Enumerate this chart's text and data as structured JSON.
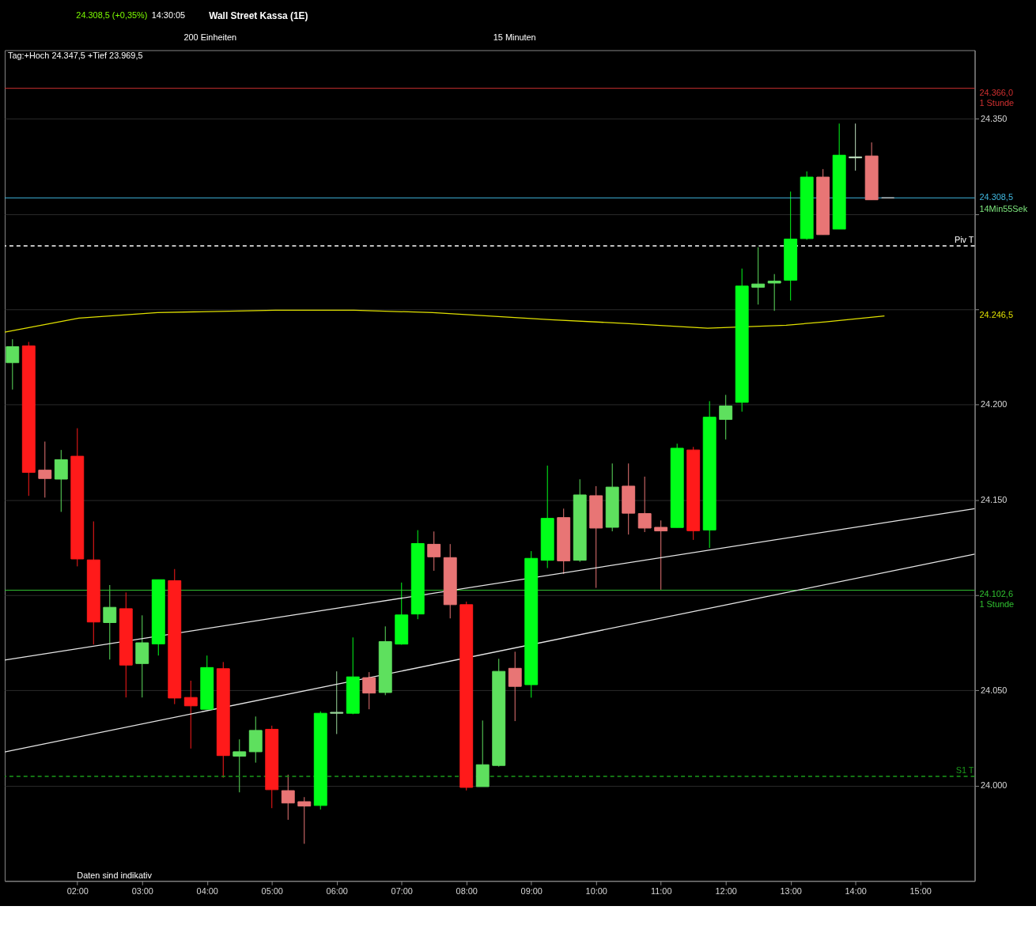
{
  "chart_data": {
    "type": "candlestick",
    "title": "Wall Street Kassa (1E)",
    "annotations": [
      "24.308,5 (+0,35%)",
      "14:30:05",
      "200 Einheiten",
      "15 Minuten",
      "Tag:+Hoch 24.347,5 +Tief 23.969,5",
      "14Min55Sek",
      "Daten sind indikativ",
      "24.246,5"
    ],
    "x": [
      1.0,
      1.25,
      1.5,
      1.75,
      2.0,
      2.25,
      2.5,
      2.75,
      3.0,
      3.25,
      3.5,
      3.75,
      4.0,
      4.25,
      4.5,
      4.75,
      5.0,
      5.25,
      5.5,
      5.75,
      6.0,
      6.25,
      6.5,
      6.75,
      7.0,
      7.25,
      7.5,
      7.75,
      8.0,
      8.25,
      8.5,
      8.75,
      9.0,
      9.25,
      9.5,
      9.75,
      10.0,
      10.25,
      10.5,
      10.75,
      11.0,
      11.25,
      11.5,
      11.75,
      12.0,
      12.25,
      12.5,
      12.75,
      13.0,
      13.25,
      13.5,
      13.75,
      14.0,
      14.25,
      14.5
    ],
    "ohlc": [
      [
        24222.0,
        24234.3,
        24207.9,
        24230.4
      ],
      [
        24230.8,
        24232.9,
        24152.1,
        24164.4
      ],
      [
        24165.6,
        24180.6,
        24151.2,
        24161.2
      ],
      [
        24160.9,
        24176.2,
        24143.7,
        24171.1
      ],
      [
        24172.9,
        24187.6,
        24115.1,
        24119.0
      ],
      [
        24118.5,
        24138.7,
        24074.1,
        24085.9
      ],
      [
        24085.6,
        24105.3,
        24066.2,
        24093.6
      ],
      [
        24092.9,
        24101.4,
        24046.3,
        24063.3
      ],
      [
        24064.1,
        24089.4,
        24046.3,
        24075.0
      ],
      [
        24074.4,
        24108.1,
        24068.3,
        24108.1
      ],
      [
        24107.6,
        24113.7,
        24042.8,
        24046.0
      ],
      [
        24046.3,
        24055.1,
        24019.5,
        24041.9
      ],
      [
        24040.1,
        24068.3,
        24040.1,
        24062.0
      ],
      [
        24061.4,
        24064.9,
        24004.2,
        24015.8
      ],
      [
        24015.5,
        24024.3,
        23996.5,
        24017.8
      ],
      [
        24017.8,
        24036.3,
        24012.1,
        24029.0
      ],
      [
        24029.6,
        24031.5,
        23988.2,
        23997.9
      ],
      [
        23997.4,
        24005.8,
        23982.1,
        23990.9
      ],
      [
        23991.6,
        23994.0,
        23969.5,
        23989.3
      ],
      [
        23989.6,
        24039.0,
        23987.5,
        24038.0
      ],
      [
        24038.0,
        24060.0,
        24027.1,
        24038.5
      ],
      [
        24038.0,
        24077.8,
        24037.5,
        24057.1
      ],
      [
        24056.7,
        24059.6,
        24040.1,
        24048.6
      ],
      [
        24048.9,
        24083.6,
        24047.5,
        24075.6
      ],
      [
        24074.3,
        24106.6,
        24074.0,
        24089.6
      ],
      [
        24090.1,
        24134.1,
        24087.4,
        24127.1
      ],
      [
        24126.7,
        24133.4,
        24112.8,
        24120.1
      ],
      [
        24119.7,
        24126.8,
        24087.8,
        24095.0
      ],
      [
        24095.0,
        24096.6,
        23997.5,
        23999.1
      ],
      [
        23999.5,
        24034.2,
        23999.5,
        24011.0
      ],
      [
        24010.6,
        24066.6,
        24010.0,
        24060.0
      ],
      [
        24061.6,
        24070.3,
        24033.9,
        24052.1
      ],
      [
        24053.0,
        24123.1,
        24046.2,
        24119.3
      ],
      [
        24118.3,
        24168.0,
        24114.2,
        24140.3
      ],
      [
        24140.7,
        24145.4,
        24111.1,
        24118.0
      ],
      [
        24118.3,
        24160.8,
        24117.5,
        24152.6
      ],
      [
        24152.2,
        24157.2,
        24103.8,
        24135.2
      ],
      [
        24135.6,
        24169.1,
        24133.5,
        24156.7
      ],
      [
        24157.2,
        24169.1,
        24131.8,
        24143.0
      ],
      [
        24142.8,
        24162.2,
        24133.1,
        24135.2
      ],
      [
        24135.6,
        24139.2,
        24102.9,
        24133.7
      ],
      [
        24135.5,
        24179.5,
        24135.5,
        24177.1
      ],
      [
        24176.2,
        24177.8,
        24129.0,
        24133.8
      ],
      [
        24134.2,
        24201.8,
        24124.8,
        24193.4
      ],
      [
        24192.2,
        24205.1,
        24181.7,
        24199.3
      ],
      [
        24201.2,
        24271.4,
        24196.3,
        24262.2
      ],
      [
        24261.6,
        24282.6,
        24252.5,
        24263.3
      ],
      [
        24263.8,
        24268.5,
        24249.2,
        24264.8
      ],
      [
        24265.3,
        24311.8,
        24254.6,
        24286.9
      ],
      [
        24287.1,
        24322.4,
        24286.5,
        24319.4
      ],
      [
        24319.4,
        24323.6,
        24289.2,
        24289.2
      ],
      [
        24292.1,
        24347.5,
        24292.1,
        24330.9
      ],
      [
        24329.5,
        24347.5,
        24322.8,
        24330.0
      ],
      [
        24330.5,
        24337.6,
        24307.5,
        24307.5
      ],
      [
        24308.5,
        24308.5,
        24308.5,
        24308.5
      ]
    ],
    "colors": [
      "#5ee05e",
      "#ff1a1a",
      "#e87575",
      "#5ee05e",
      "#ff1a1a",
      "#ff1a1a",
      "#5ee05e",
      "#ff1a1a",
      "#5ee05e",
      "#00ff1a",
      "#ff1a1a",
      "#ff1a1a",
      "#00ff1a",
      "#ff1a1a",
      "#5ee05e",
      "#5ee05e",
      "#ff1a1a",
      "#e87575",
      "#e87575",
      "#00ff1a",
      "#9ad89a",
      "#00ff1a",
      "#e87575",
      "#5ee05e",
      "#00ff1a",
      "#00ff1a",
      "#e87575",
      "#e87575",
      "#ff1a1a",
      "#5ee05e",
      "#5ee05e",
      "#e87575",
      "#00ff1a",
      "#00ff1a",
      "#e87575",
      "#5ee05e",
      "#e87575",
      "#5ee05e",
      "#e87575",
      "#e87575",
      "#e87575",
      "#00ff1a",
      "#ff1a1a",
      "#00ff1a",
      "#5ee05e",
      "#00ff1a",
      "#5ee05e",
      "#5ee05e",
      "#00ff1a",
      "#00ff1a",
      "#e87575",
      "#00ff1a",
      "#c0e0c0",
      "#e87575",
      "#c8c8c8"
    ],
    "series": [
      {
        "type": "line",
        "color": "#e0e000",
        "x": [
          0.88,
          2.024,
          3.236,
          5.055,
          6.267,
          7.479,
          9.297,
          10.509,
          11.721,
          12.933,
          13.539,
          14.448
        ],
        "values": [
          24238.0,
          24245.4,
          24248.3,
          24249.5,
          24249.5,
          24248.3,
          24244.6,
          24242.5,
          24240.1,
          24241.7,
          24243.4,
          24246.5
        ]
      },
      {
        "type": "line",
        "color": "#e6e6e6",
        "x": [
          0.88,
          15.84
        ],
        "values": [
          24065.9,
          24145.4
        ]
      },
      {
        "type": "line",
        "color": "#e6e6e6",
        "x": [
          0.88,
          15.84
        ],
        "values": [
          24017.7,
          24121.5
        ]
      }
    ],
    "ref_lines": [
      {
        "axis": "y",
        "value": 24366.0,
        "label": "24.366,0\n1 Stunde",
        "color": "#d03030",
        "line_style": "solid"
      },
      {
        "axis": "y",
        "value": 24308.5,
        "label": "24.308,5",
        "color": "#40b8e0",
        "line_style": "solid"
      },
      {
        "axis": "y",
        "value": 24283.3,
        "label": "Piv T",
        "color": "#ffffff",
        "line_style": "dashed"
      },
      {
        "axis": "y",
        "value": 24102.6,
        "label": "24.102,6\n1 Stunde",
        "color": "#30c030",
        "line_style": "solid"
      },
      {
        "axis": "y",
        "value": 24004.9,
        "label": "S1 T",
        "color": "#1a9a1a",
        "line_style": "dashed"
      }
    ],
    "xlim": [
      0.88,
      15.84
    ],
    "xticks": [
      {
        "value": 2,
        "label": "02:00"
      },
      {
        "value": 3,
        "label": "03:00"
      },
      {
        "value": 4,
        "label": "04:00"
      },
      {
        "value": 5,
        "label": "05:00"
      },
      {
        "value": 6,
        "label": "06:00"
      },
      {
        "value": 7,
        "label": "07:00"
      },
      {
        "value": 8,
        "label": "08:00"
      },
      {
        "value": 9,
        "label": "09:00"
      },
      {
        "value": 10,
        "label": "10:00"
      },
      {
        "value": 11,
        "label": "11:00"
      },
      {
        "value": 12,
        "label": "12:00"
      },
      {
        "value": 13,
        "label": "13:00"
      },
      {
        "value": 14,
        "label": "14:00"
      },
      {
        "value": 15,
        "label": "15:00"
      }
    ],
    "ylim": [
      23950,
      24386
    ],
    "yticks": [
      {
        "value": 24000,
        "label": "24.000"
      },
      {
        "value": 24050,
        "label": "24.050"
      },
      {
        "value": 24100,
        "label": null
      },
      {
        "value": 24150,
        "label": "24.150"
      },
      {
        "value": 24200,
        "label": "24.200"
      },
      {
        "value": 24250,
        "label": null
      },
      {
        "value": 24300,
        "label": null
      },
      {
        "value": 24350,
        "label": "24.350"
      }
    ],
    "grid": "y"
  }
}
